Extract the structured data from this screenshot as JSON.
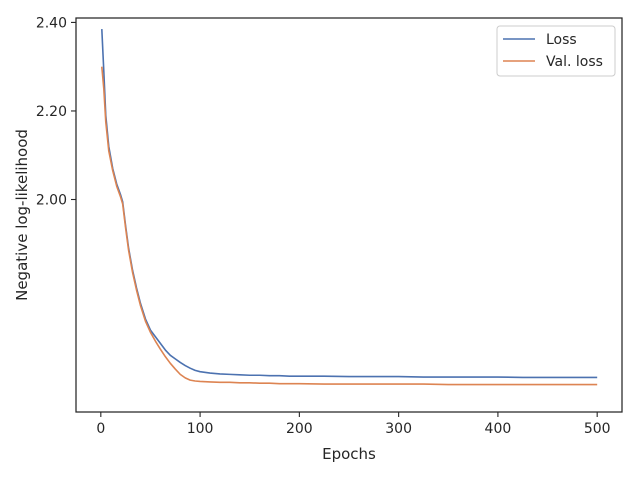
{
  "chart_data": {
    "type": "line",
    "title": "",
    "xlabel": "Epochs",
    "ylabel": "Negative log-likelihood",
    "xlim": [
      -25,
      525
    ],
    "ylim": [
      1.52,
      2.41
    ],
    "xticks": [
      0,
      100,
      200,
      300,
      400,
      500
    ],
    "xtick_labels": [
      "0",
      "100",
      "200",
      "300",
      "400",
      "500"
    ],
    "yticks": [
      2.0,
      2.2,
      2.4
    ],
    "ytick_labels": [
      "2.00",
      "2.20",
      "2.40"
    ],
    "grid": false,
    "legend_position": "top-right",
    "series": [
      {
        "name": "Loss",
        "color": "#4c72b0",
        "x": [
          1,
          3,
          5,
          8,
          12,
          16,
          20,
          22,
          25,
          28,
          32,
          36,
          40,
          45,
          50,
          55,
          60,
          65,
          70,
          75,
          80,
          85,
          90,
          95,
          100,
          110,
          120,
          130,
          140,
          150,
          160,
          170,
          180,
          190,
          200,
          225,
          250,
          275,
          300,
          325,
          350,
          375,
          400,
          425,
          450,
          475,
          500
        ],
        "values": [
          2.385,
          2.29,
          2.19,
          2.12,
          2.07,
          2.035,
          2.01,
          1.995,
          1.94,
          1.89,
          1.84,
          1.8,
          1.765,
          1.73,
          1.705,
          1.69,
          1.675,
          1.66,
          1.648,
          1.64,
          1.632,
          1.625,
          1.619,
          1.614,
          1.611,
          1.608,
          1.606,
          1.605,
          1.604,
          1.603,
          1.603,
          1.602,
          1.602,
          1.601,
          1.601,
          1.601,
          1.6,
          1.6,
          1.6,
          1.599,
          1.599,
          1.599,
          1.599,
          1.598,
          1.598,
          1.598,
          1.598
        ]
      },
      {
        "name": "Val. loss",
        "color": "#dd8452",
        "x": [
          1,
          3,
          5,
          8,
          12,
          16,
          20,
          22,
          25,
          28,
          32,
          36,
          40,
          45,
          50,
          55,
          60,
          65,
          70,
          75,
          80,
          85,
          90,
          95,
          100,
          110,
          120,
          130,
          140,
          150,
          160,
          170,
          180,
          190,
          200,
          225,
          250,
          275,
          300,
          325,
          350,
          375,
          400,
          425,
          450,
          475,
          500
        ],
        "values": [
          2.3,
          2.25,
          2.175,
          2.11,
          2.065,
          2.03,
          2.005,
          1.99,
          1.935,
          1.885,
          1.835,
          1.795,
          1.76,
          1.725,
          1.7,
          1.68,
          1.662,
          1.645,
          1.63,
          1.617,
          1.605,
          1.597,
          1.592,
          1.59,
          1.589,
          1.588,
          1.587,
          1.587,
          1.586,
          1.586,
          1.585,
          1.585,
          1.584,
          1.584,
          1.584,
          1.583,
          1.583,
          1.583,
          1.583,
          1.583,
          1.582,
          1.582,
          1.582,
          1.582,
          1.582,
          1.582,
          1.582
        ]
      }
    ]
  }
}
